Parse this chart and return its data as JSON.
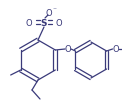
{
  "bg_color": "#ffffff",
  "line_color": "#3a3a7a",
  "line_width": 0.9,
  "figsize": [
    1.22,
    1.13
  ],
  "dpi": 100,
  "xlim": [
    0,
    122
  ],
  "ylim": [
    0,
    113
  ]
}
